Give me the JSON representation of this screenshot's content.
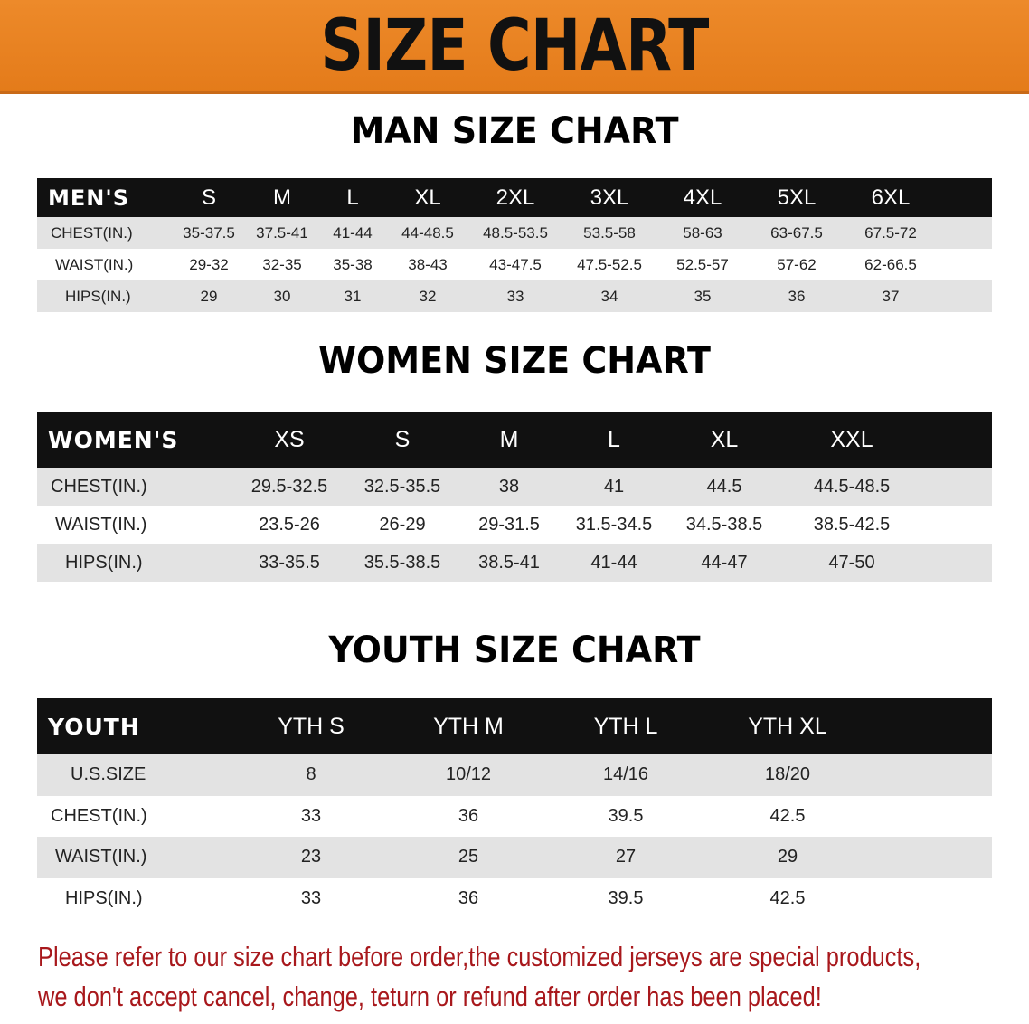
{
  "banner": {
    "title": "SIZE CHART",
    "color": "#e98120"
  },
  "men": {
    "title": "MAN SIZE CHART",
    "header_label": "MEN'S",
    "sizes": [
      "S",
      "M",
      "L",
      "XL",
      "2XL",
      "3XL",
      "4XL",
      "5XL",
      "6XL"
    ],
    "rows": [
      {
        "label": "CHEST(IN.)",
        "values": [
          "35-37.5",
          "37.5-41",
          "41-44",
          "44-48.5",
          "48.5-53.5",
          "53.5-58",
          "58-63",
          "63-67.5",
          "67.5-72"
        ]
      },
      {
        "label": "WAIST(IN.)",
        "values": [
          "29-32",
          "32-35",
          "35-38",
          "38-43",
          "43-47.5",
          "47.5-52.5",
          "52.5-57",
          "57-62",
          "62-66.5"
        ]
      },
      {
        "label": "HIPS(IN.)",
        "values": [
          "29",
          "30",
          "31",
          "32",
          "33",
          "34",
          "35",
          "36",
          "37"
        ]
      }
    ]
  },
  "women": {
    "title": "WOMEN SIZE CHART",
    "header_label": "WOMEN'S",
    "sizes": [
      "XS",
      "S",
      "M",
      "L",
      "XL",
      "XXL"
    ],
    "rows": [
      {
        "label": "CHEST(IN.)",
        "values": [
          "29.5-32.5",
          "32.5-35.5",
          "38",
          "41",
          "44.5",
          "44.5-48.5"
        ]
      },
      {
        "label": "WAIST(IN.)",
        "values": [
          "23.5-26",
          "26-29",
          "29-31.5",
          "31.5-34.5",
          "34.5-38.5",
          "38.5-42.5"
        ]
      },
      {
        "label": "HIPS(IN.)",
        "values": [
          "33-35.5",
          "35.5-38.5",
          "38.5-41",
          "41-44",
          "44-47",
          "47-50"
        ]
      }
    ]
  },
  "youth": {
    "title": "YOUTH SIZE CHART",
    "header_label": "YOUTH",
    "sizes": [
      "YTH S",
      "YTH M",
      "YTH L",
      "YTH XL"
    ],
    "rows": [
      {
        "label": "U.S.SIZE",
        "values": [
          "8",
          "10/12",
          "14/16",
          "18/20"
        ]
      },
      {
        "label": "CHEST(IN.)",
        "values": [
          "33",
          "36",
          "39.5",
          "42.5"
        ]
      },
      {
        "label": "WAIST(IN.)",
        "values": [
          "23",
          "25",
          "27",
          "29"
        ]
      },
      {
        "label": "HIPS(IN.)",
        "values": [
          "33",
          "36",
          "39.5",
          "42.5"
        ]
      }
    ]
  },
  "notice": {
    "line1": "Please refer to our size chart before order,the customized jerseys are special products,",
    "line2": "we don't accept cancel, change, teturn or refund after order has been placed!",
    "color": "#a8181c"
  }
}
